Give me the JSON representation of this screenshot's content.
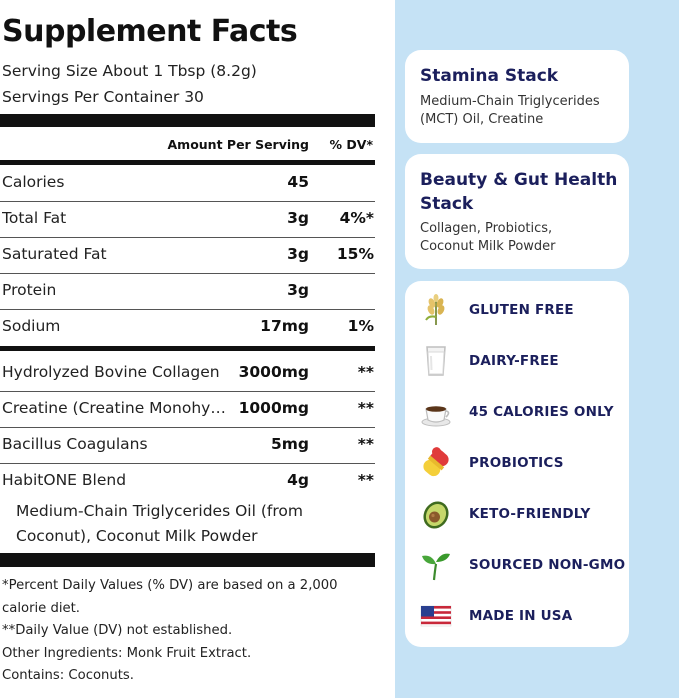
{
  "facts": {
    "title": "Supplement Facts",
    "serving_size": "Serving Size About 1 Tbsp (8.2g)",
    "servings_per_container": "Servings Per Container 30",
    "header_amount": "Amount Per Serving",
    "header_dv": "% DV*",
    "nutrients": [
      {
        "label": "Calories",
        "amount": "45",
        "dv": ""
      },
      {
        "label": "Total Fat",
        "amount": "3g",
        "dv": "4%*"
      },
      {
        "label": "Saturated Fat",
        "amount": "3g",
        "dv": "15%"
      },
      {
        "label": "Protein",
        "amount": "3g",
        "dv": ""
      },
      {
        "label": "Sodium",
        "amount": "17mg",
        "dv": "1%"
      }
    ],
    "ingredients": [
      {
        "label": "Hydrolyzed Bovine Collagen",
        "amount": "3000mg",
        "dv": "**"
      },
      {
        "label": "Creatine (Creatine Monohy…",
        "amount": "1000mg",
        "dv": "**"
      },
      {
        "label": "Bacillus Coagulans",
        "amount": "5mg",
        "dv": "**"
      },
      {
        "label": "HabitONE Blend",
        "amount": "4g",
        "dv": "**"
      }
    ],
    "blend_sub_1": "Medium-Chain Triglycerides Oil (from",
    "blend_sub_2": "Coconut), Coconut Milk Powder",
    "footnotes": [
      "*Percent Daily Values (% DV) are based on a 2,000 calorie diet.",
      "**Daily Value (DV) not established.",
      "Other Ingredients: Monk Fruit Extract.",
      "Contains: Coconuts."
    ]
  },
  "side": {
    "stamina": {
      "title": "Stamina Stack",
      "text_1": "Medium-Chain Triglycerides",
      "text_2": "(MCT) Oil, Creatine"
    },
    "beauty": {
      "title_1": "Beauty & Gut Health",
      "title_2": "Stack",
      "text_1": "Collagen, Probiotics,",
      "text_2": "Coconut Milk Powder"
    },
    "badges": [
      {
        "icon": "wheat-icon",
        "label": "GLUTEN FREE"
      },
      {
        "icon": "milk-glass-icon",
        "label": "DAIRY-FREE"
      },
      {
        "icon": "coffee-cup-icon",
        "label": "45 CALORIES ONLY"
      },
      {
        "icon": "capsule-icon",
        "label": "PROBIOTICS"
      },
      {
        "icon": "avocado-icon",
        "label": "KETO-FRIENDLY"
      },
      {
        "icon": "sprout-icon",
        "label": "SOURCED NON-GMO"
      },
      {
        "icon": "us-flag-icon",
        "label": "MADE IN USA"
      }
    ]
  },
  "colors": {
    "panel_bg": "#c5e2f5",
    "heading_navy": "#1b1f5c",
    "rule_black": "#111111"
  }
}
